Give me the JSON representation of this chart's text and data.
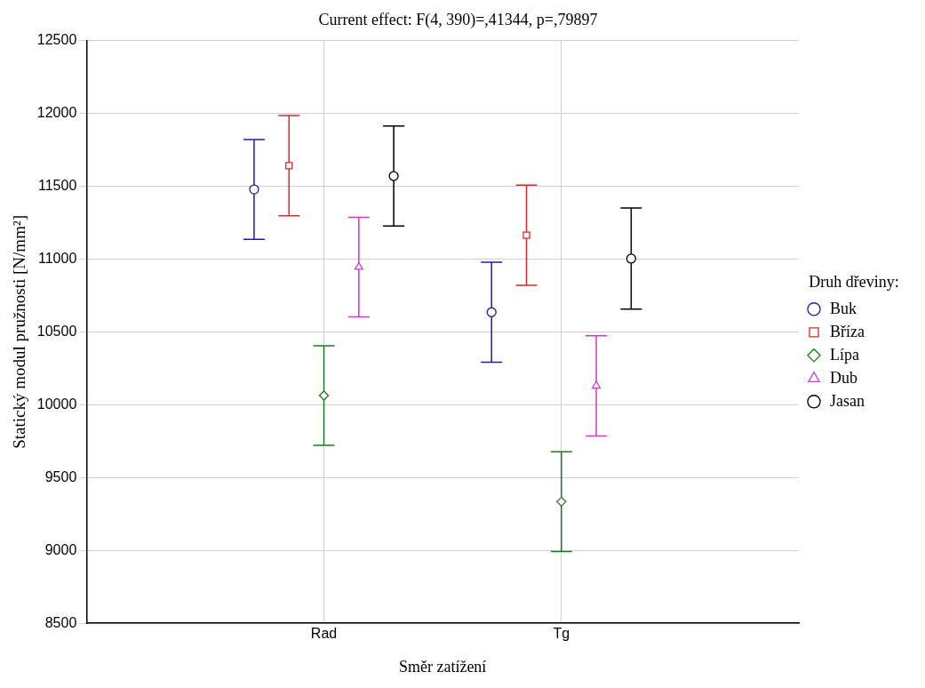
{
  "chart_data": {
    "type": "scatter",
    "title": "Current effect: F(4, 390)=,41344, p=,79897",
    "xlabel": "Směr zatížení",
    "ylabel": "Statický modul pružnosti [N/mm²]",
    "legend_title": "Druh dřeviny:",
    "categories": [
      "Rad",
      "Tg"
    ],
    "series": [
      {
        "name": "Buk",
        "color": "#1f1fa0",
        "marker": "circle",
        "values": [
          11478,
          10635
        ],
        "errors": [
          343,
          343
        ]
      },
      {
        "name": "Bříza",
        "color": "#d42a2a",
        "marker": "square",
        "values": [
          11641,
          11164
        ],
        "errors": [
          344,
          344
        ]
      },
      {
        "name": "Lípa",
        "color": "#1e7a1e",
        "marker": "diamond",
        "values": [
          10063,
          9335
        ],
        "errors": [
          342,
          342
        ]
      },
      {
        "name": "Dub",
        "color": "#d633d6",
        "marker": "triangle",
        "values": [
          10945,
          10130
        ],
        "errors": [
          342,
          344
        ]
      },
      {
        "name": "Jasan",
        "color": "#000000",
        "marker": "circle",
        "values": [
          11570,
          11003
        ],
        "errors": [
          343,
          347
        ]
      }
    ],
    "ylim": [
      8500,
      12500
    ],
    "yticks": [
      8500,
      9000,
      9500,
      10000,
      10500,
      11000,
      11500,
      12000,
      12500
    ],
    "grid": true,
    "legend": "right"
  }
}
